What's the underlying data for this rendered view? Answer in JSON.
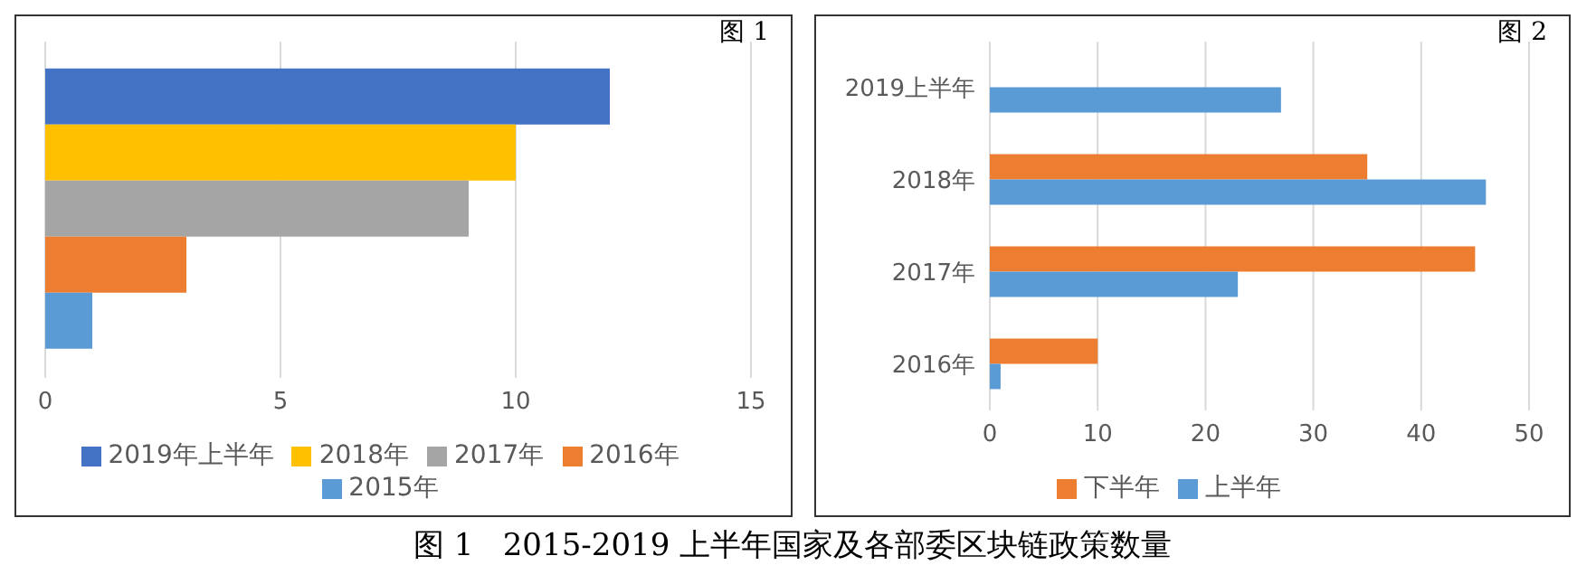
{
  "chart_data": [
    {
      "type": "bar",
      "orientation": "horizontal",
      "title": "图 1",
      "categories": [
        null
      ],
      "series": [
        {
          "name": "2019年上半年",
          "color": "#4472c4",
          "values": [
            12
          ]
        },
        {
          "name": "2018年",
          "color": "#ffc000",
          "values": [
            10
          ]
        },
        {
          "name": "2017年",
          "color": "#a5a5a5",
          "values": [
            9
          ]
        },
        {
          "name": "2016年",
          "color": "#ed7d31",
          "values": [
            3
          ]
        },
        {
          "name": "2015年",
          "color": "#5b9bd5",
          "values": [
            1
          ]
        }
      ],
      "xlim": [
        0,
        15
      ],
      "xticks": [
        0,
        5,
        10,
        15
      ],
      "grid": "x",
      "legend": "bottom",
      "annotations": [
        "图 1   2015-2019 上半年国家及各部委区块链政策数量"
      ]
    },
    {
      "type": "bar",
      "orientation": "horizontal",
      "title": "图 2",
      "categories": [
        "2019上半年",
        "2018年",
        "2017年",
        "2016年"
      ],
      "series": [
        {
          "name": "下半年",
          "color": "#ed7d31",
          "values": [
            null,
            35,
            45,
            10
          ]
        },
        {
          "name": "上半年",
          "color": "#5b9bd5",
          "values": [
            27,
            46,
            23,
            1
          ]
        }
      ],
      "xlim": [
        0,
        50
      ],
      "xticks": [
        0,
        10,
        20,
        30,
        40,
        50
      ],
      "grid": "x",
      "legend": "bottom"
    }
  ]
}
